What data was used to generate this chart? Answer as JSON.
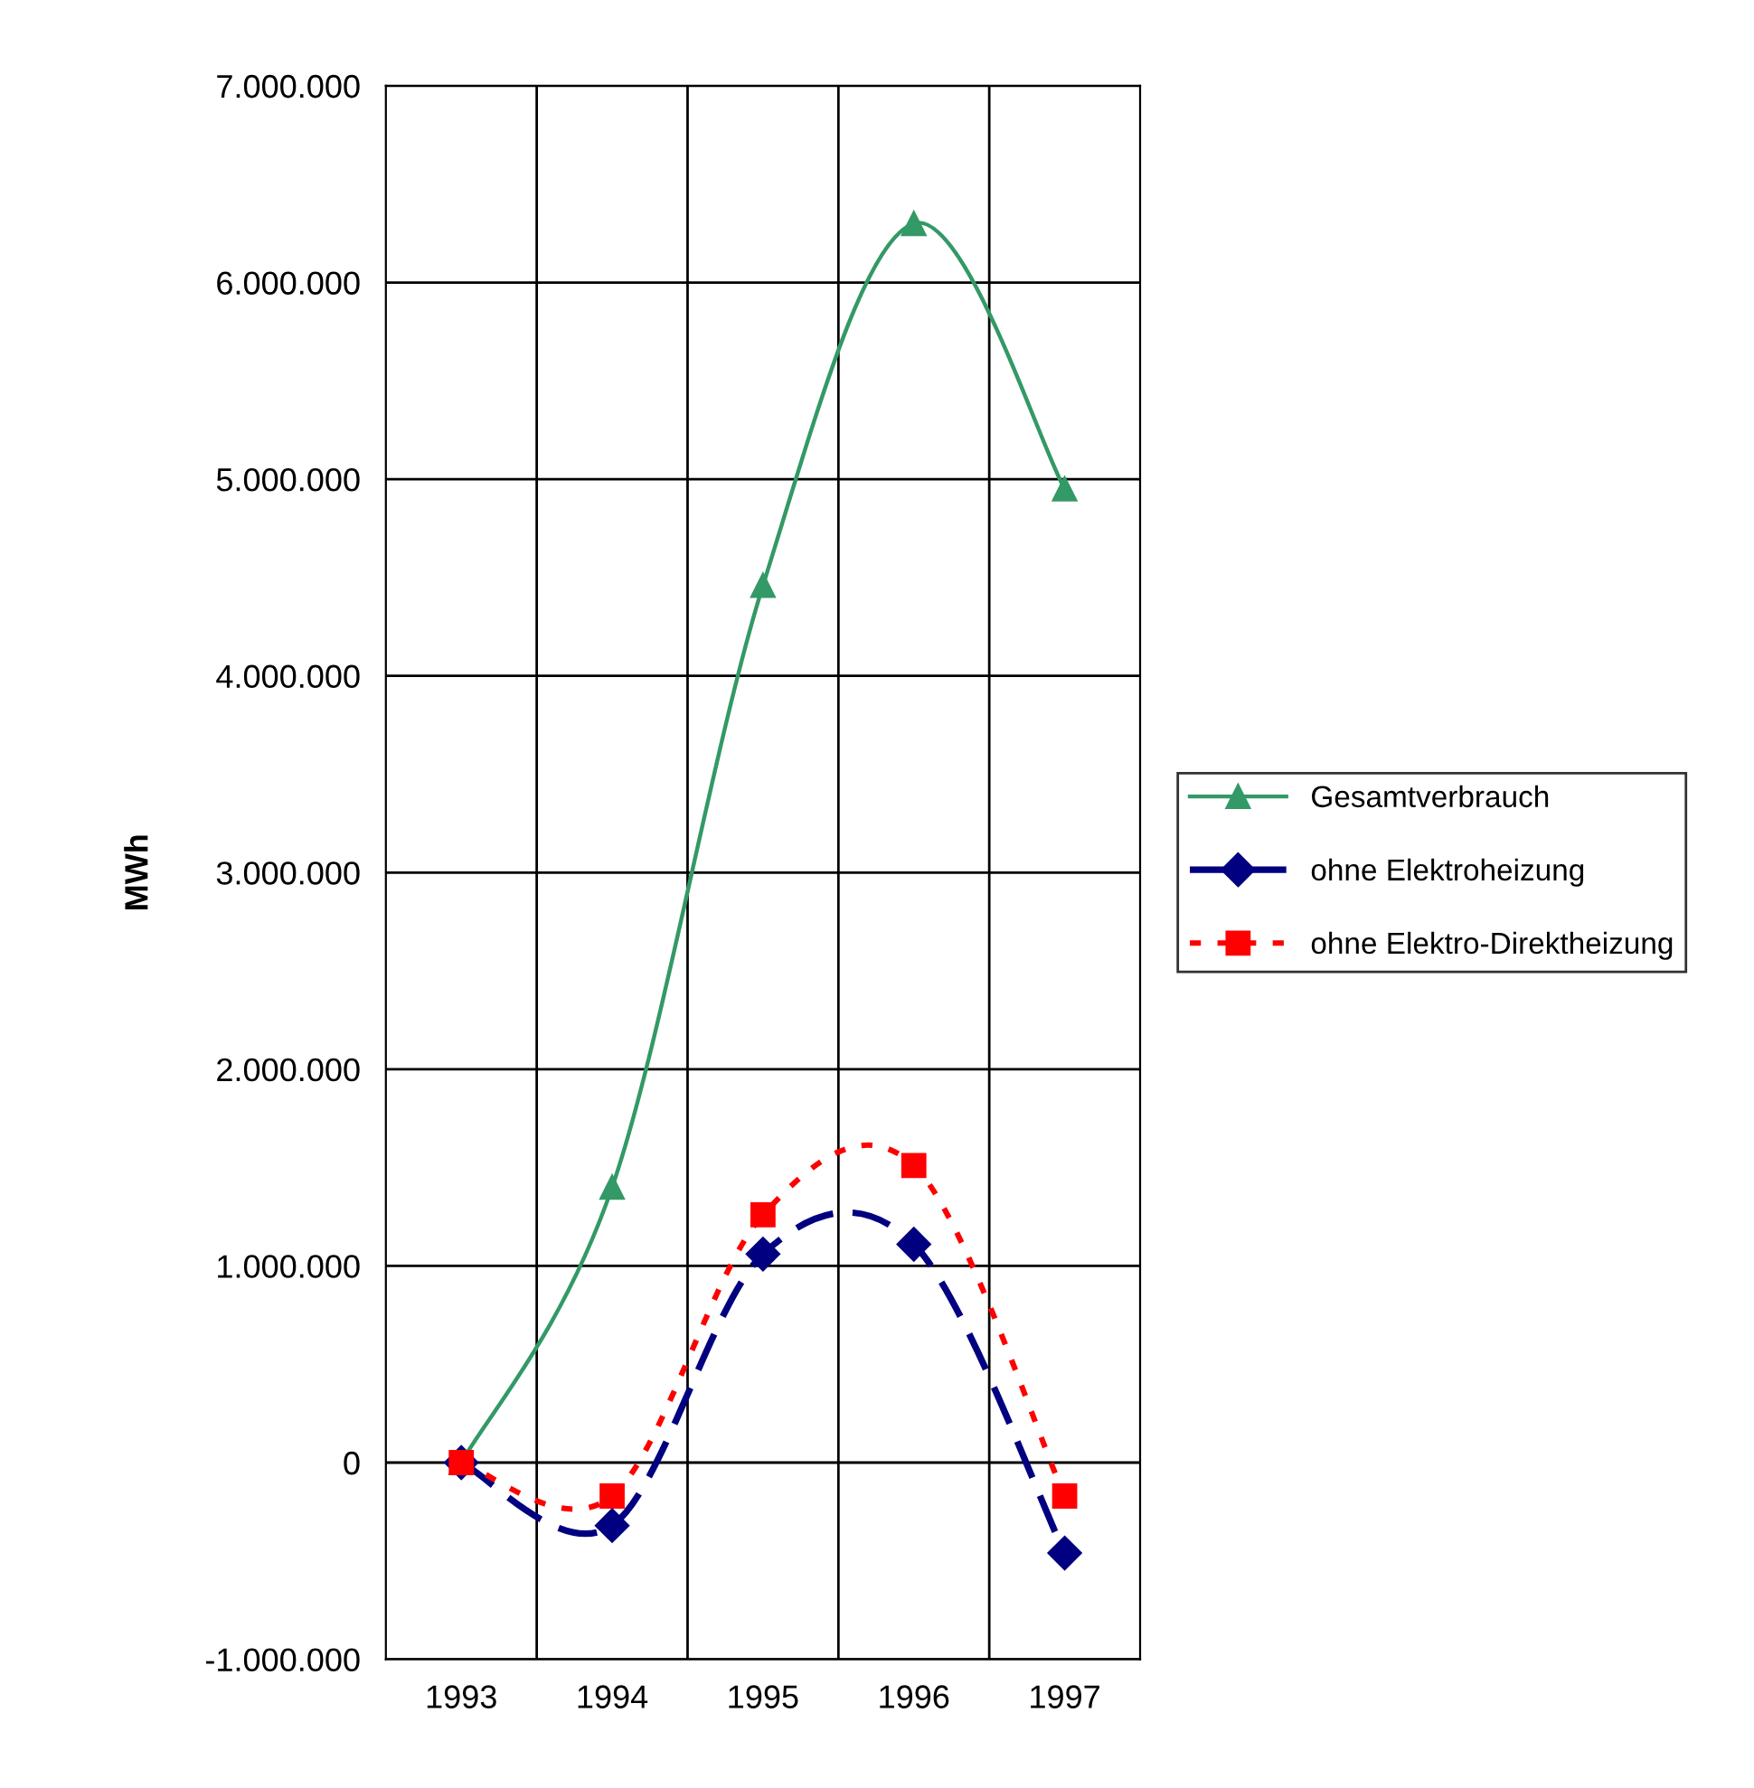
{
  "chart_data": {
    "type": "line",
    "ylabel": "MWh",
    "categories": [
      "1993",
      "1994",
      "1995",
      "1996",
      "1997"
    ],
    "series": [
      {
        "name": "Gesamtverbrauch",
        "color": "#339966",
        "marker": "triangle",
        "line_style": "solid",
        "values": [
          0,
          1400000,
          4460000,
          6300000,
          4950000
        ]
      },
      {
        "name": "ohne Elektroheizung",
        "color": "#000080",
        "marker": "diamond",
        "line_style": "dashed",
        "values": [
          0,
          -320000,
          1060000,
          1110000,
          -460000
        ]
      },
      {
        "name": "ohne Elektro-Direktheizung",
        "color": "#ff0000",
        "marker": "square",
        "line_style": "dotted",
        "values": [
          0,
          -170000,
          1260000,
          1510000,
          -170000
        ]
      }
    ],
    "ylim": [
      -1000000,
      7000000
    ],
    "yticks": [
      {
        "value": -1000000,
        "label": "-1.000.000"
      },
      {
        "value": 0,
        "label": "0"
      },
      {
        "value": 1000000,
        "label": "1.000.000"
      },
      {
        "value": 2000000,
        "label": "2.000.000"
      },
      {
        "value": 3000000,
        "label": "3.000.000"
      },
      {
        "value": 4000000,
        "label": "4.000.000"
      },
      {
        "value": 5000000,
        "label": "5.000.000"
      },
      {
        "value": 6000000,
        "label": "6.000.000"
      },
      {
        "value": 7000000,
        "label": "7.000.000"
      }
    ],
    "grid": true,
    "legend": "right"
  }
}
